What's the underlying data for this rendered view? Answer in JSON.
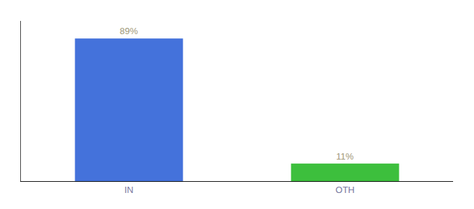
{
  "chart_data": {
    "type": "bar",
    "categories": [
      "IN",
      "OTH"
    ],
    "values": [
      89,
      11
    ],
    "value_labels": [
      "89%",
      "11%"
    ],
    "colors": [
      "#4472db",
      "#3dbf3d"
    ],
    "ylim": [
      0,
      100
    ],
    "data_labels": true,
    "tick_labels": "x",
    "grid": false
  }
}
